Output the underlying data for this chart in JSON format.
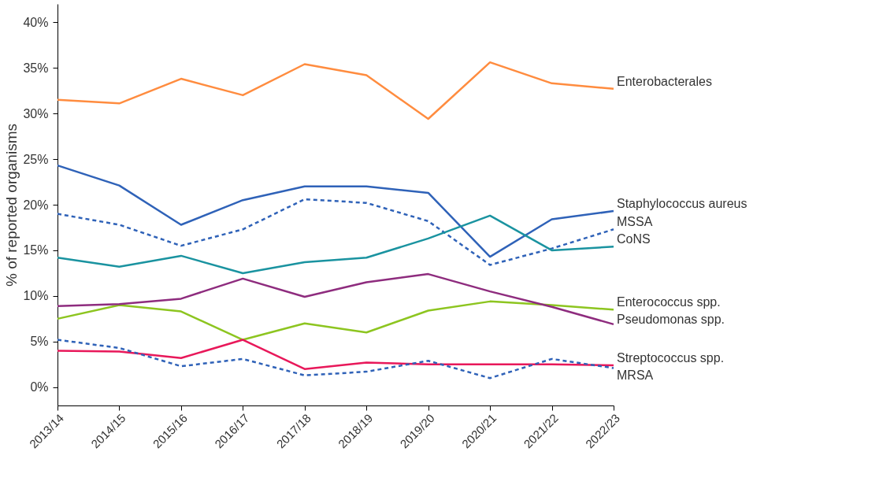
{
  "chart_data": {
    "type": "line",
    "ylabel": "% of reported organisms",
    "categories": [
      "2013/14",
      "2014/15",
      "2015/16",
      "2016/17",
      "2017/18",
      "2018/19",
      "2019/20",
      "2020/21",
      "2021/22",
      "2022/23"
    ],
    "ylim": [
      -2,
      42
    ],
    "yticks": [
      {
        "value": 0,
        "label": "0%"
      },
      {
        "value": 5,
        "label": "5%"
      },
      {
        "value": 10,
        "label": "10%"
      },
      {
        "value": 15,
        "label": "15%"
      },
      {
        "value": 20,
        "label": "20%"
      },
      {
        "value": 25,
        "label": "25%"
      },
      {
        "value": 30,
        "label": "30%"
      },
      {
        "value": 35,
        "label": "35%"
      },
      {
        "value": 40,
        "label": "40%"
      }
    ],
    "grid": false,
    "marker": "none",
    "series": [
      {
        "name": "Enterobacterales",
        "color": "#ff8c3f",
        "line_style": "solid",
        "values": [
          31.5,
          31.1,
          33.8,
          32.0,
          35.4,
          34.2,
          29.4,
          35.6,
          33.3,
          32.7
        ]
      },
      {
        "name": "Staphylococcus aureus",
        "color": "#2f62b8",
        "line_style": "solid",
        "values": [
          24.3,
          22.1,
          17.8,
          20.5,
          22.0,
          22.0,
          21.3,
          14.3,
          18.4,
          19.3
        ]
      },
      {
        "name": "MSSA",
        "color": "#2f62b8",
        "line_style": "dashed",
        "values": [
          19.0,
          17.8,
          15.5,
          17.3,
          20.6,
          20.2,
          18.2,
          13.4,
          15.2,
          17.3
        ]
      },
      {
        "name": "CoNS",
        "color": "#1a93a0",
        "line_style": "solid",
        "values": [
          14.2,
          13.2,
          14.4,
          12.5,
          13.7,
          14.2,
          16.3,
          18.8,
          15.0,
          15.4
        ]
      },
      {
        "name": "Enterococcus spp.",
        "color": "#8dc520",
        "line_style": "solid",
        "values": [
          7.5,
          9.0,
          8.3,
          5.2,
          7.0,
          6.0,
          8.4,
          9.4,
          9.0,
          8.5
        ]
      },
      {
        "name": "Pseudomonas spp.",
        "color": "#8e2c7e",
        "line_style": "solid",
        "values": [
          8.9,
          9.1,
          9.7,
          11.9,
          9.9,
          11.5,
          12.4,
          10.5,
          8.8,
          6.9
        ]
      },
      {
        "name": "Streptococcus spp.",
        "color": "#e8185a",
        "line_style": "solid",
        "values": [
          4.0,
          3.9,
          3.2,
          5.2,
          2.0,
          2.7,
          2.5,
          2.5,
          2.5,
          2.4
        ]
      },
      {
        "name": "MRSA",
        "color": "#2f62b8",
        "line_style": "dashed",
        "values": [
          5.2,
          4.3,
          2.3,
          3.1,
          1.3,
          1.7,
          2.9,
          1.0,
          3.1,
          2.1
        ]
      }
    ]
  }
}
